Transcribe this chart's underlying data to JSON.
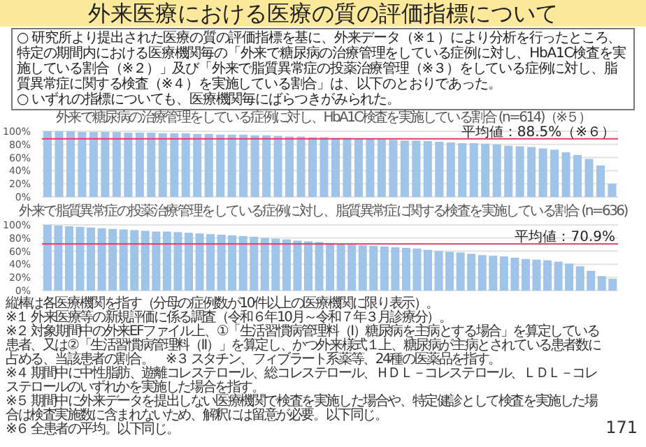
{
  "chart_data": [
    {
      "type": "other",
      "title": "外来医療における医療の質の評価指標について",
      "annotations": [
        "○ 研究所より提出された医療の質の評価指標を基に、外来データ（※１）により分析を行ったところ、特定の期間内における医療機関毎の「外来で糖尿病の治療管理をしている症例に対し、HbA1C検査を実施している割合（※２）」及び「外来で脂質異常症の投薬治療管理（※３）をしている症例に対し、脂質異常症に関する検査（※４）を実施している割合」は、以下のとおりであった。",
        "○ いずれの指標についても、医療機関毎にばらつきがみられた。"
      ]
    },
    {
      "type": "bar",
      "title": "外来で糖尿病の治療管理をしている症例に対し、HbA1C検査を実施している割合 (n=614)（※５）",
      "color": "#9fc4e8",
      "categories": [
        null,
        null,
        null,
        null,
        null,
        null,
        null,
        null,
        null,
        null,
        null,
        null,
        null,
        null,
        null,
        null,
        null,
        null,
        null,
        null,
        null,
        null,
        null,
        null,
        null,
        null,
        null,
        null,
        null,
        null,
        null,
        null,
        null,
        null,
        null,
        null,
        null,
        null,
        null,
        null,
        null,
        null,
        null,
        null,
        null,
        null,
        null,
        null,
        null,
        null
      ],
      "values": [
        100,
        100,
        100,
        99,
        99,
        99,
        99,
        98,
        98,
        98,
        97,
        97,
        97,
        96,
        96,
        95,
        95,
        95,
        94,
        94,
        93,
        92,
        92,
        91,
        91,
        90,
        90,
        89,
        89,
        88,
        87,
        86,
        86,
        85,
        84,
        83,
        82,
        82,
        81,
        80,
        78,
        77,
        76,
        74,
        72,
        68,
        64,
        58,
        48,
        20
      ],
      "ylim": [
        0,
        100
      ],
      "yticks": [
        {
          "value": 0,
          "label": "0%"
        },
        {
          "value": 20,
          "label": "20%"
        },
        {
          "value": 40,
          "label": "40%"
        },
        {
          "value": 60,
          "label": "60%"
        },
        {
          "value": 80,
          "label": "80%"
        },
        {
          "value": 100,
          "label": "100%"
        }
      ],
      "grid": "y",
      "tick_labels": "y",
      "ref_lines": [
        {
          "axis": "y",
          "value": 88.5,
          "label": "平均値：88.5%（※６）",
          "color": "#e8386a"
        }
      ]
    },
    {
      "type": "bar",
      "title": "外来で脂質異常症の投薬治療管理をしている症例に対し、脂質異常症に関する検査を実施している割合 (n=636)",
      "color": "#9fc4e8",
      "categories": [
        null,
        null,
        null,
        null,
        null,
        null,
        null,
        null,
        null,
        null,
        null,
        null,
        null,
        null,
        null,
        null,
        null,
        null,
        null,
        null,
        null,
        null,
        null,
        null,
        null,
        null,
        null,
        null,
        null,
        null,
        null,
        null,
        null,
        null,
        null,
        null,
        null,
        null,
        null,
        null,
        null,
        null,
        null,
        null,
        null,
        null,
        null,
        null,
        null,
        null,
        null,
        null,
        null
      ],
      "values": [
        100,
        99,
        98,
        97,
        96,
        95,
        94,
        93,
        92,
        91,
        90,
        90,
        89,
        88,
        87,
        86,
        85,
        84,
        83,
        82,
        80,
        79,
        78,
        76,
        75,
        74,
        72,
        71,
        70,
        69,
        68,
        67,
        66,
        65,
        64,
        62,
        60,
        59,
        58,
        56,
        54,
        53,
        52,
        50,
        48,
        47,
        46,
        44,
        41,
        37,
        30,
        22,
        18
      ],
      "ylim": [
        0,
        100
      ],
      "yticks": [
        {
          "value": 0,
          "label": "0%"
        },
        {
          "value": 20,
          "label": "20%"
        },
        {
          "value": 40,
          "label": "40%"
        },
        {
          "value": 60,
          "label": "60%"
        },
        {
          "value": 80,
          "label": "80%"
        },
        {
          "value": 100,
          "label": "100%"
        }
      ],
      "grid": "y",
      "tick_labels": "y",
      "ref_lines": [
        {
          "axis": "y",
          "value": 70.9,
          "label": "平均値：70.9%",
          "color": "#e8386a"
        }
      ],
      "annotations": [
        "縦棒は各医療機関を指す（分母の症例数が10件以上の医療機関に限り表示）。",
        "※１ 外来医療等の新規評価に係る調査（令和６年10月～令和７年３月診療分）。",
        "※２ 対象期間中の外来EFファイル上、①「生活習慣病管理料（Ⅰ）糖尿病を主病とする場合」を算定している患者、又は②「生活習慣病管理料（Ⅱ）」を算定し、かつ外来様式１上、糖尿病が主病とされている患者数に占める、当該患者の割合。　※３ スタチン、フィブラート系薬等、24種の医薬品を指す。",
        "※４ 期間中に中性脂肪、遊離コレステロール、総コレステロール、ＨＤＬ－コレステロール、ＬＤＬ－コレステロールのいずれかを実施した場合を指す。",
        "※５ 期間中に外来データを提出しない医療機関で検査を実施した場合や、特定健診として検査を実施した場合は検査実施数に含まれないため、解釈には留意が必要。以下同じ。",
        "※６ 全患者の平均。以下同じ。",
        "171"
      ]
    }
  ]
}
